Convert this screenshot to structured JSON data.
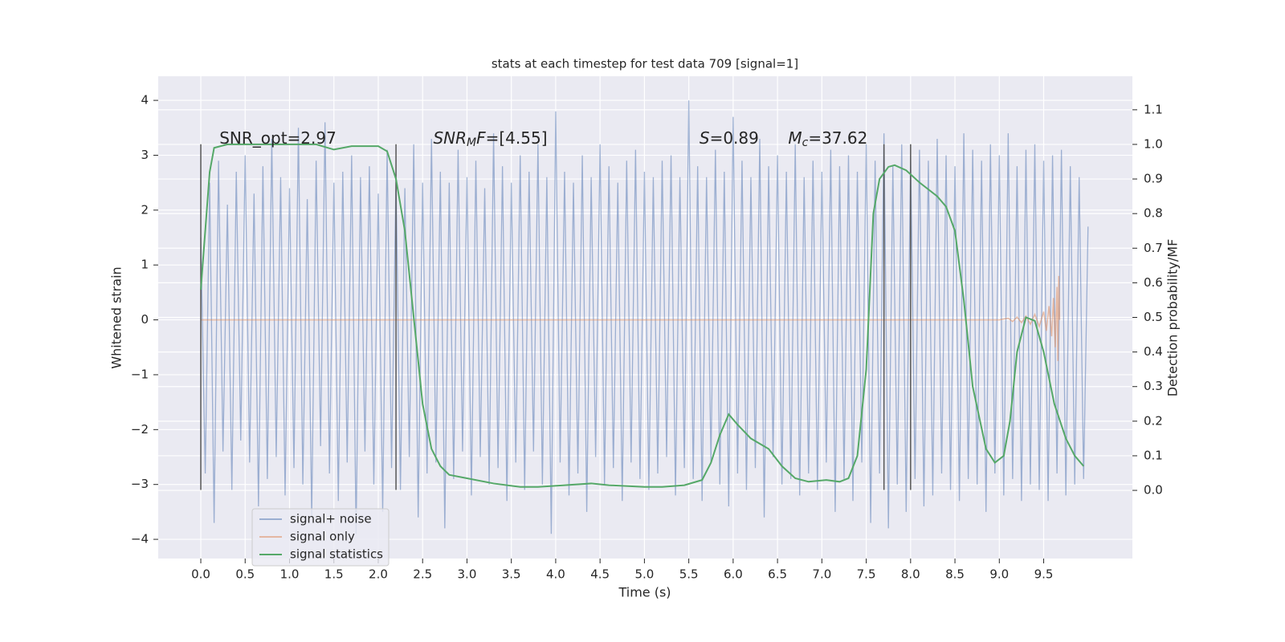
{
  "chart_data": {
    "type": "line",
    "title": "stats at each timestep for test data 709 [signal=1]",
    "xlabel": "Time (s)",
    "ylabel": "Whitened strain",
    "y2label": "Detection probability/MF",
    "xlim": [
      -0.48,
      10.5
    ],
    "ylim": [
      -4.35,
      4.44
    ],
    "y2lim": [
      -0.197,
      1.197
    ],
    "xticks": [
      {
        "value": 0,
        "label": "0.0"
      },
      0.5,
      {
        "value": 1,
        "label": "1.0"
      },
      1.5,
      {
        "value": 2,
        "label": "2.0"
      },
      2.5,
      {
        "value": 3,
        "label": "3.0"
      },
      3.5,
      {
        "value": 4,
        "label": "4.0"
      },
      4.5,
      {
        "value": 5,
        "label": "5.0"
      },
      5.5,
      {
        "value": 6,
        "label": "6.0"
      },
      6.5,
      {
        "value": 7,
        "label": "7.0"
      },
      7.5,
      {
        "value": 8,
        "label": "8.0"
      },
      8.5,
      {
        "value": 9,
        "label": "9.0"
      },
      9.5
    ],
    "yticks": [
      {
        "value": -4,
        "label": "−4"
      },
      {
        "value": -3,
        "label": "−3"
      },
      {
        "value": -2,
        "label": "−2"
      },
      {
        "value": -1,
        "label": "−1"
      },
      0,
      1,
      2,
      3,
      4
    ],
    "y2ticks": [
      {
        "value": 0,
        "label": "0.0"
      },
      0.1,
      0.2,
      0.3,
      0.4,
      0.5,
      0.6,
      0.7,
      0.8,
      0.9,
      {
        "value": 1,
        "label": "1.0"
      },
      1.1
    ],
    "grid": true,
    "legend": "lower left",
    "series": [
      {
        "name": "signal+ noise",
        "color": "#4c72b0",
        "x": [
          0,
          0.05,
          0.1,
          0.15,
          0.2,
          0.25,
          0.3,
          0.35,
          0.4,
          0.45,
          0.5,
          0.55,
          0.6,
          0.65,
          0.7,
          0.75,
          0.8,
          0.85,
          0.9,
          0.95,
          1,
          1.05,
          1.1,
          1.15,
          1.2,
          1.25,
          1.3,
          1.35,
          1.4,
          1.45,
          1.5,
          1.55,
          1.6,
          1.65,
          1.7,
          1.75,
          1.8,
          1.85,
          1.9,
          1.95,
          2,
          2.05,
          2.1,
          2.15,
          2.2,
          2.25,
          2.3,
          2.35,
          2.4,
          2.45,
          2.5,
          2.55,
          2.6,
          2.65,
          2.7,
          2.75,
          2.8,
          2.85,
          2.9,
          2.95,
          3,
          3.05,
          3.1,
          3.15,
          3.2,
          3.25,
          3.3,
          3.35,
          3.4,
          3.45,
          3.5,
          3.55,
          3.6,
          3.65,
          3.7,
          3.75,
          3.8,
          3.85,
          3.9,
          3.95,
          4,
          4.05,
          4.1,
          4.15,
          4.2,
          4.25,
          4.3,
          4.35,
          4.4,
          4.45,
          4.5,
          4.55,
          4.6,
          4.65,
          4.7,
          4.75,
          4.8,
          4.85,
          4.9,
          4.95,
          5,
          5.05,
          5.1,
          5.15,
          5.2,
          5.25,
          5.3,
          5.35,
          5.4,
          5.45,
          5.5,
          5.55,
          5.6,
          5.65,
          5.7,
          5.75,
          5.8,
          5.85,
          5.9,
          5.95,
          6,
          6.05,
          6.1,
          6.15,
          6.2,
          6.25,
          6.3,
          6.35,
          6.4,
          6.45,
          6.5,
          6.55,
          6.6,
          6.65,
          6.7,
          6.75,
          6.8,
          6.85,
          6.9,
          6.95,
          7,
          7.05,
          7.1,
          7.15,
          7.2,
          7.25,
          7.3,
          7.35,
          7.4,
          7.45,
          7.5,
          7.55,
          7.6,
          7.65,
          7.7,
          7.75,
          7.8,
          7.85,
          7.9,
          7.95,
          8,
          8.05,
          8.1,
          8.15,
          8.2,
          8.25,
          8.3,
          8.35,
          8.4,
          8.45,
          8.5,
          8.55,
          8.6,
          8.65,
          8.7,
          8.75,
          8.8,
          8.85,
          8.9,
          8.95,
          9,
          9.05,
          9.1,
          9.15,
          9.2,
          9.25,
          9.3,
          9.35,
          9.4,
          9.45,
          9.5,
          9.55,
          9.6,
          9.65,
          9.7,
          9.75,
          9.8,
          9.85,
          9.9,
          9.95,
          10
        ],
        "values": [
          1.5,
          -2.8,
          2.5,
          -3.7,
          2.9,
          -2.4,
          2.1,
          -3.1,
          2.7,
          -2.2,
          3.0,
          -2.6,
          2.3,
          -3.4,
          2.8,
          -2.9,
          3.3,
          -2.5,
          2.6,
          -3.2,
          2.4,
          -2.7,
          3.5,
          -3.0,
          2.2,
          -3.6,
          2.9,
          -2.3,
          3.6,
          -2.8,
          2.5,
          -3.3,
          2.7,
          -2.6,
          3.0,
          -3.9,
          2.6,
          -2.4,
          2.8,
          -3.0,
          2.3,
          -3.5,
          3.1,
          -2.7,
          2.6,
          -3.1,
          2.4,
          -2.5,
          3.2,
          -3.6,
          2.5,
          -2.8,
          3.3,
          -2.6,
          2.7,
          -3.8,
          2.5,
          -2.9,
          3.1,
          -2.4,
          2.6,
          -3.2,
          2.9,
          -2.5,
          2.4,
          -3.0,
          3.4,
          -2.7,
          2.8,
          -3.3,
          2.5,
          -2.6,
          3.0,
          -3.1,
          2.7,
          -2.4,
          3.2,
          -3.0,
          2.6,
          -3.9,
          3.8,
          -2.6,
          2.7,
          -3.2,
          2.5,
          -2.8,
          3.0,
          -3.5,
          2.6,
          -2.5,
          3.2,
          -3.0,
          2.8,
          -2.7,
          2.5,
          -3.3,
          2.9,
          -2.6,
          3.1,
          -2.9,
          2.7,
          -3.1,
          2.6,
          -2.8,
          2.9,
          -2.5,
          3.0,
          -3.2,
          2.6,
          -2.7,
          4.0,
          -2.9,
          2.8,
          -3.3,
          2.6,
          -2.6,
          3.1,
          -3.0,
          2.7,
          -3.4,
          3.7,
          -2.8,
          2.9,
          -3.1,
          2.6,
          -2.7,
          3.3,
          -3.6,
          2.8,
          -2.5,
          3.0,
          -3.0,
          2.7,
          -2.9,
          3.2,
          -3.2,
          2.6,
          -2.8,
          2.9,
          -3.1,
          2.7,
          -2.6,
          3.1,
          -3.5,
          2.8,
          -2.9,
          3.0,
          -3.3,
          2.7,
          -2.6,
          3.2,
          -3.7,
          2.9,
          -2.8,
          3.4,
          -3.8,
          2.8,
          -3.0,
          3.2,
          -3.5,
          3.0,
          -2.9,
          3.1,
          -3.4,
          2.9,
          -3.2,
          3.3,
          -2.8,
          3.0,
          -3.1,
          2.8,
          -3.3,
          3.4,
          -2.9,
          3.1,
          -3.0,
          2.9,
          -3.5,
          3.2,
          -2.8,
          3.0,
          -3.2,
          3.4,
          -2.9,
          2.8,
          -3.3,
          3.1,
          -3.0,
          3.2,
          -3.1,
          2.9,
          -3.3,
          3.0,
          -2.8,
          3.1,
          -3.2,
          2.8,
          -3.0,
          2.6,
          -2.9,
          1.7
        ]
      },
      {
        "name": "signal only",
        "color": "#dd8452",
        "x": [
          0,
          9.0,
          9.1,
          9.15,
          9.2,
          9.25,
          9.3,
          9.35,
          9.4,
          9.45,
          9.5,
          9.53,
          9.56,
          9.59,
          9.61,
          9.63,
          9.65,
          9.66,
          9.67,
          9.68
        ],
        "values": [
          0,
          0,
          0.03,
          -0.03,
          0.05,
          -0.05,
          0.07,
          -0.08,
          0.1,
          -0.12,
          0.15,
          -0.2,
          0.25,
          -0.3,
          0.4,
          -0.5,
          0.6,
          -0.75,
          0.8,
          0
        ]
      },
      {
        "name": "signal statistics",
        "color": "#55a868",
        "axis": "y2",
        "x": [
          0,
          0.1,
          0.15,
          0.3,
          1.3,
          1.5,
          1.7,
          2.0,
          2.1,
          2.2,
          2.3,
          2.4,
          2.5,
          2.6,
          2.7,
          2.8,
          3.0,
          3.3,
          3.6,
          3.8,
          4.1,
          4.4,
          4.6,
          5.0,
          5.2,
          5.45,
          5.65,
          5.75,
          5.85,
          5.95,
          6.05,
          6.2,
          6.4,
          6.55,
          6.7,
          6.85,
          7.05,
          7.2,
          7.3,
          7.4,
          7.5,
          7.58,
          7.65,
          7.75,
          7.82,
          7.95,
          8.1,
          8.3,
          8.4,
          8.5,
          8.6,
          8.7,
          8.85,
          8.95,
          9.05,
          9.12,
          9.2,
          9.3,
          9.4,
          9.5,
          9.62,
          9.75,
          9.85,
          9.95
        ],
        "values": [
          0.58,
          0.92,
          0.99,
          1.0,
          1.0,
          0.985,
          0.995,
          0.995,
          0.98,
          0.9,
          0.75,
          0.5,
          0.25,
          0.12,
          0.07,
          0.045,
          0.035,
          0.02,
          0.01,
          0.01,
          0.015,
          0.02,
          0.015,
          0.01,
          0.01,
          0.015,
          0.03,
          0.08,
          0.16,
          0.22,
          0.19,
          0.15,
          0.12,
          0.07,
          0.035,
          0.025,
          0.03,
          0.025,
          0.035,
          0.1,
          0.35,
          0.8,
          0.9,
          0.935,
          0.94,
          0.925,
          0.89,
          0.85,
          0.82,
          0.75,
          0.55,
          0.3,
          0.12,
          0.08,
          0.1,
          0.2,
          0.4,
          0.5,
          0.49,
          0.4,
          0.25,
          0.15,
          0.1,
          0.07
        ]
      }
    ],
    "vlines": {
      "x": [
        0,
        2.2,
        7.7,
        8.0
      ],
      "ymin": -3.1,
      "ymax": 3.2,
      "color": "#555555"
    },
    "annotations": [
      {
        "x": 0.21,
        "y": 3.3,
        "runs": [
          {
            "text": "SNR_opt=2.97"
          }
        ]
      },
      {
        "x": 2.62,
        "y": 3.3,
        "runs": [
          {
            "text": "SNR",
            "italic": true
          },
          {
            "text": "M",
            "italic": true,
            "sub": true
          },
          {
            "text": "F",
            "italic": true
          },
          {
            "text": "=[4.55]"
          }
        ]
      },
      {
        "x": 5.62,
        "y": 3.3,
        "runs": [
          {
            "text": "S",
            "italic": true
          },
          {
            "text": "=0.89"
          }
        ]
      },
      {
        "x": 6.62,
        "y": 3.3,
        "runs": [
          {
            "text": "M",
            "italic": true
          },
          {
            "text": "c",
            "italic": true,
            "sub": true
          },
          {
            "text": "=37.62"
          }
        ]
      }
    ]
  }
}
